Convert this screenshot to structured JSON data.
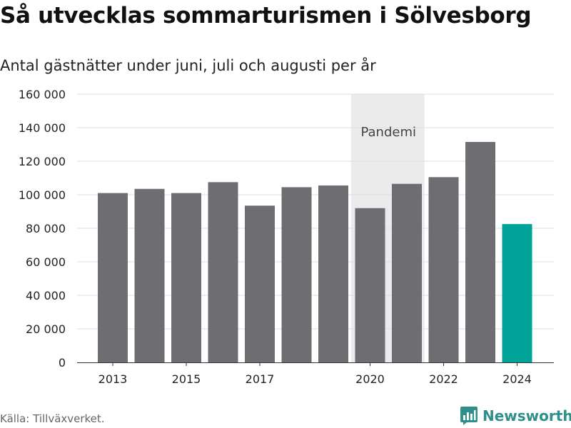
{
  "title": "Så utvecklas sommarturismen i Sölvesborg",
  "subtitle": "Antal gästnätter under juni, juli och augusti per år",
  "source": "Källa: Tillväxverket.",
  "brand": "Newsworthy",
  "colors": {
    "bar": "#6e6d72",
    "highlight": "#00a398",
    "band": "#ebebeb",
    "grid": "#dddddd",
    "brand": "#2f8f8a"
  },
  "chart_data": {
    "type": "bar",
    "categories": [
      "2013",
      "2014",
      "2015",
      "2016",
      "2017",
      "2018",
      "2019",
      "2020",
      "2021",
      "2022",
      "2023",
      "2024"
    ],
    "values": [
      101000,
      103500,
      101000,
      107500,
      93500,
      104500,
      105500,
      92000,
      106500,
      110500,
      131500,
      82500
    ],
    "highlight_category": "2024",
    "x_tick_labels": [
      "2013",
      "2015",
      "2017",
      "2020",
      "2022",
      "2024"
    ],
    "y_ticks": [
      0,
      20000,
      40000,
      60000,
      80000,
      100000,
      120000,
      140000,
      160000
    ],
    "y_tick_labels": [
      "0",
      "20 000",
      "40 000",
      "60 000",
      "80 000",
      "100 000",
      "120 000",
      "140 000",
      "160 000"
    ],
    "ylim": [
      0,
      160000
    ],
    "grid": true,
    "annotations": [
      {
        "label": "Pandemi",
        "from": "2020",
        "to": "2021"
      }
    ]
  }
}
